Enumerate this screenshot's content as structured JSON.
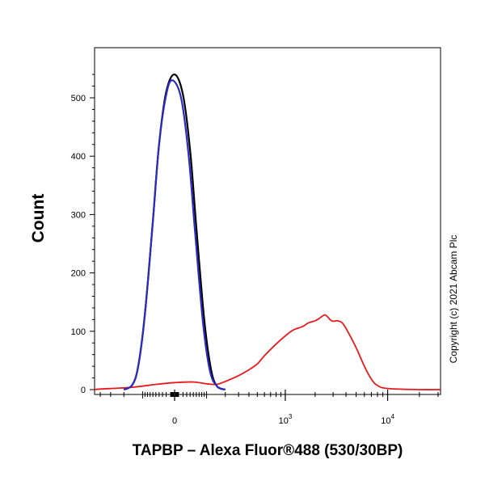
{
  "chart_data": {
    "type": "line",
    "title": "",
    "xlabel": "TAPBP – Alexa Fluor®488 (530/30BP)",
    "ylabel": "Count",
    "x_scale": "logicle",
    "ylim": [
      0,
      560
    ],
    "y_ticks": [
      {
        "value": 0,
        "label": "0"
      },
      {
        "value": 100,
        "label": "100"
      },
      {
        "value": 200,
        "label": "200"
      },
      {
        "value": 300,
        "label": "300"
      },
      {
        "value": 400,
        "label": "400"
      },
      {
        "value": 500,
        "label": "500"
      }
    ],
    "x_ticks": [
      {
        "value": 0,
        "label": "0"
      },
      {
        "value": 1000,
        "base": "10",
        "exp": "3"
      },
      {
        "value": 10000,
        "base": "10",
        "exp": "4"
      }
    ],
    "grid": false,
    "legend": "none",
    "annotation": "Copyright (c) 2021 Abcam Plc",
    "series": [
      {
        "color": "#000000",
        "x": [
          -200,
          -150,
          -120,
          -90,
          -60,
          -40,
          -20,
          0,
          20,
          40,
          60,
          90,
          120,
          150,
          200
        ],
        "y": [
          0,
          8,
          40,
          130,
          290,
          420,
          510,
          540,
          505,
          410,
          280,
          120,
          35,
          6,
          0
        ]
      },
      {
        "color": "#2b2bc4",
        "x": [
          -200,
          -150,
          -120,
          -90,
          -60,
          -40,
          -20,
          -5,
          15,
          35,
          55,
          85,
          115,
          150,
          200
        ],
        "y": [
          0,
          8,
          40,
          130,
          290,
          420,
          505,
          530,
          500,
          405,
          275,
          115,
          32,
          6,
          0
        ]
      },
      {
        "color": "#e8191c",
        "x": [
          -1000,
          -400,
          -150,
          -50,
          0,
          50,
          100,
          150,
          200,
          300,
          400,
          500,
          600,
          800,
          1000,
          1200,
          1500,
          1700,
          2000,
          2200,
          2500,
          2800,
          3000,
          3300,
          3700,
          4200,
          5000,
          6000,
          7000,
          8000,
          10000,
          20000,
          40000
        ],
        "y": [
          0,
          1,
          4,
          9,
          12,
          13,
          10,
          9,
          14,
          24,
          34,
          44,
          58,
          78,
          92,
          102,
          108,
          114,
          118,
          122,
          128,
          120,
          117,
          118,
          114,
          98,
          72,
          40,
          18,
          7,
          2,
          0,
          0
        ]
      }
    ]
  }
}
